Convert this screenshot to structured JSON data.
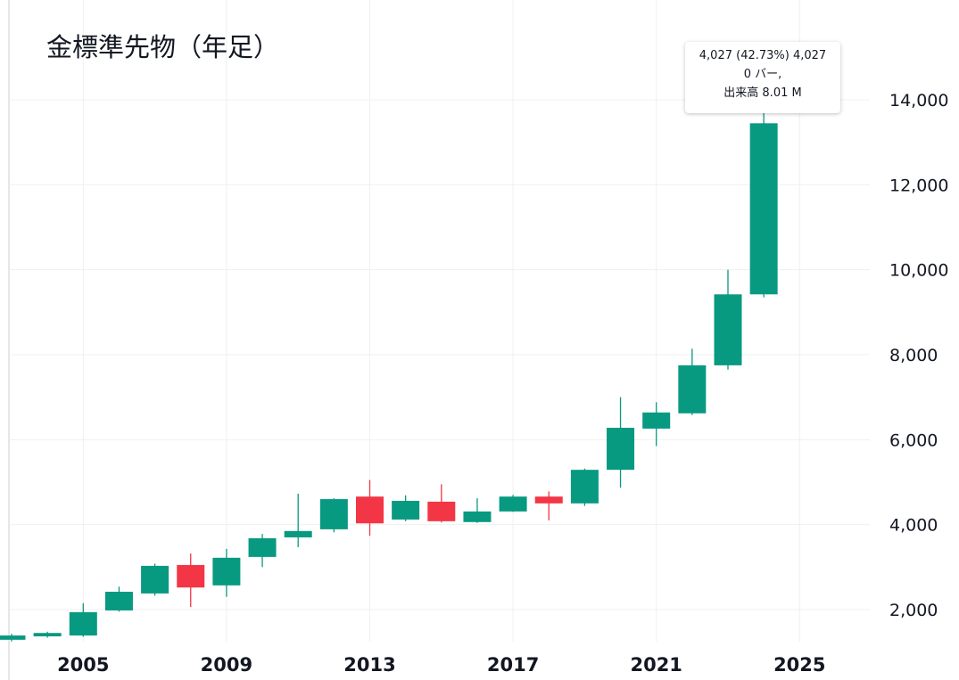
{
  "chart_data": {
    "type": "candlestick",
    "title": "金標準先物（年足）",
    "years": [
      2003,
      2004,
      2005,
      2006,
      2007,
      2008,
      2009,
      2010,
      2011,
      2012,
      2013,
      2014,
      2015,
      2016,
      2017,
      2018,
      2019,
      2020,
      2021,
      2022,
      2023,
      2024
    ],
    "ohlc": [
      [
        1290,
        1430,
        1250,
        1390
      ],
      [
        1370,
        1480,
        1340,
        1450
      ],
      [
        1390,
        2150,
        1360,
        1940
      ],
      [
        1980,
        2540,
        1950,
        2420
      ],
      [
        2380,
        3080,
        2330,
        3030
      ],
      [
        3050,
        3320,
        2060,
        2520
      ],
      [
        2570,
        3430,
        2300,
        3220
      ],
      [
        3240,
        3780,
        3000,
        3680
      ],
      [
        3700,
        4730,
        3470,
        3850
      ],
      [
        3890,
        4620,
        3820,
        4600
      ],
      [
        4660,
        5050,
        3740,
        4030
      ],
      [
        4120,
        4690,
        4080,
        4560
      ],
      [
        4540,
        4950,
        4050,
        4080
      ],
      [
        4060,
        4620,
        4040,
        4310
      ],
      [
        4310,
        4700,
        4300,
        4660
      ],
      [
        4660,
        4780,
        4100,
        4500
      ],
      [
        4500,
        5320,
        4440,
        5290
      ],
      [
        5290,
        7000,
        4870,
        6280
      ],
      [
        6260,
        6880,
        5850,
        6640
      ],
      [
        6620,
        8140,
        6580,
        7750
      ],
      [
        7750,
        10000,
        7650,
        9420
      ],
      [
        9420,
        13800,
        9350,
        13447
      ]
    ],
    "y_ticks": [
      "2,000",
      "4,000",
      "6,000",
      "8,000",
      "10,000",
      "12,000",
      "14,000"
    ],
    "y_tick_values": [
      2000,
      4000,
      6000,
      8000,
      10000,
      12000,
      14000
    ],
    "x_ticks": [
      "2005",
      "2009",
      "2013",
      "2017",
      "2021",
      "2025"
    ],
    "x_tick_values": [
      2005,
      2009,
      2013,
      2017,
      2021,
      2025
    ],
    "up_color": "#089981",
    "down_color": "#f23645",
    "grid": true
  },
  "tooltip": {
    "line1": "4,027 (42.73%) 4,027",
    "line2": "0 バー,",
    "line3": "出来高 8.01 M"
  }
}
